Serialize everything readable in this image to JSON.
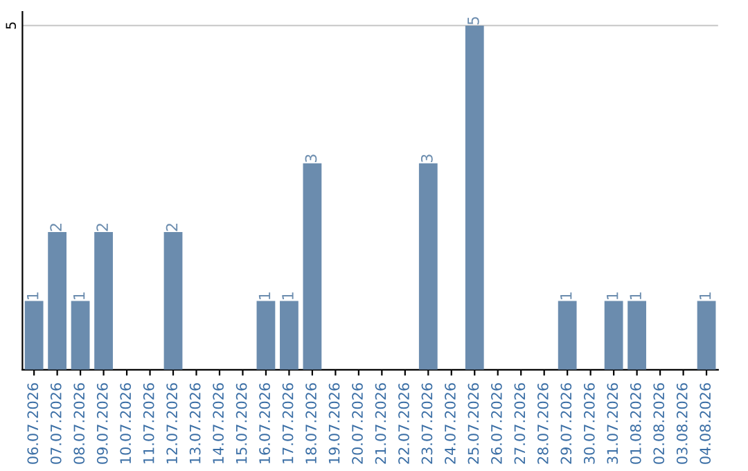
{
  "chart_data": {
    "type": "bar",
    "categories": [
      "06.07.2026",
      "07.07.2026",
      "08.07.2026",
      "09.07.2026",
      "10.07.2026",
      "11.07.2026",
      "12.07.2026",
      "13.07.2026",
      "14.07.2026",
      "15.07.2026",
      "16.07.2026",
      "17.07.2026",
      "18.07.2026",
      "19.07.2026",
      "20.07.2026",
      "21.07.2026",
      "22.07.2026",
      "23.07.2026",
      "24.07.2026",
      "25.07.2026",
      "26.07.2026",
      "27.07.2026",
      "28.07.2026",
      "29.07.2026",
      "30.07.2026",
      "31.07.2026",
      "01.08.2026",
      "02.08.2026",
      "03.08.2026",
      "04.08.2026"
    ],
    "values": [
      1,
      2,
      1,
      2,
      0,
      0,
      2,
      0,
      0,
      0,
      1,
      1,
      3,
      0,
      0,
      0,
      0,
      3,
      0,
      5,
      0,
      0,
      0,
      1,
      0,
      1,
      1,
      0,
      0,
      1
    ],
    "value_labels": [
      "1",
      "2",
      "1",
      "2",
      null,
      null,
      "2",
      null,
      null,
      null,
      "1",
      "1",
      "3",
      null,
      null,
      null,
      null,
      "3",
      null,
      "5",
      null,
      null,
      null,
      "1",
      null,
      "1",
      "1",
      null,
      null,
      "1"
    ],
    "color": "#6b8cae",
    "ylim": [
      0,
      5.2
    ],
    "yticks": [
      5
    ],
    "grid": "y"
  }
}
